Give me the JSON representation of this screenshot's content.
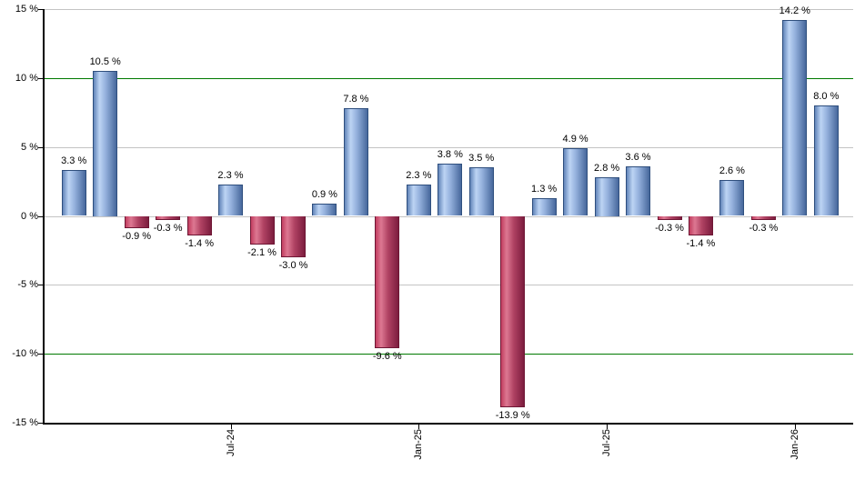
{
  "chart_data": {
    "type": "bar",
    "title": "",
    "xlabel": "",
    "ylabel": "",
    "ylim": [
      -15,
      15
    ],
    "grid": true,
    "values": [
      3.3,
      10.5,
      -0.9,
      -0.3,
      -1.4,
      2.3,
      -2.1,
      -3.0,
      0.9,
      7.8,
      -9.6,
      2.3,
      3.8,
      3.5,
      -13.9,
      1.3,
      4.9,
      2.8,
      3.6,
      -0.3,
      -1.4,
      2.6,
      -0.3,
      14.2,
      8.0
    ],
    "bar_labels": [
      "3.3 %",
      "10.5 %",
      "-0.9 %",
      "-0.3 %",
      "-1.4 %",
      "2.3 %",
      "-2.1 %",
      "-3.0 %",
      "0.9 %",
      "7.8 %",
      "-9.6 %",
      "2.3 %",
      "3.8 %",
      "3.5 %",
      "-13.9 %",
      "1.3 %",
      "4.9 %",
      "2.8 %",
      "3.6 %",
      "-0.3 %",
      "-1.4 %",
      "2.6 %",
      "-0.3 %",
      "14.2 %",
      "8.0 %"
    ],
    "y_ticks": [
      {
        "label": "15 %",
        "value": 15
      },
      {
        "label": "10 %",
        "value": 10
      },
      {
        "label": "5 %",
        "value": 5
      },
      {
        "label": "0 %",
        "value": 0
      },
      {
        "label": "-5 %",
        "value": -5
      },
      {
        "label": "-10 %",
        "value": -10
      },
      {
        "label": "-15 %",
        "value": -15
      }
    ],
    "x_ticks": [
      {
        "label": "Jul-24",
        "bar_index": 5
      },
      {
        "label": "Jan-25",
        "bar_index": 11
      },
      {
        "label": "Jul-25",
        "bar_index": 17
      },
      {
        "label": "Jan-26",
        "bar_index": 23
      }
    ],
    "highlight_line_values": [
      10,
      -10
    ],
    "legend": null,
    "colors": {
      "positive_bar": "#7fa3d8",
      "negative_bar": "#c13e60",
      "highlight_line": "#007a00",
      "gridline": "#c4c4c4",
      "axis": "#000000",
      "label_text": "#000000",
      "background": "#ffffff"
    }
  }
}
